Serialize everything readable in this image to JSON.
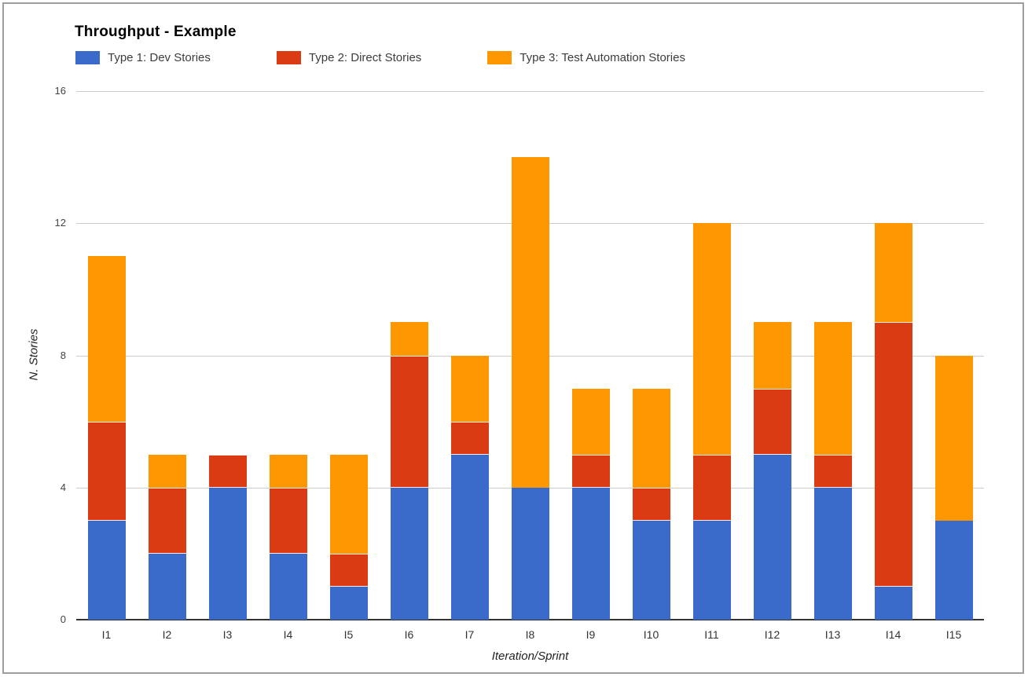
{
  "chart_data": {
    "type": "bar",
    "stacked": true,
    "title": "Throughput - Example",
    "xlabel": "Iteration/Sprint",
    "ylabel": "N. Stories",
    "categories": [
      "I1",
      "I2",
      "I3",
      "I4",
      "I5",
      "I6",
      "I7",
      "I8",
      "I9",
      "I10",
      "I11",
      "I12",
      "I13",
      "I14",
      "I15"
    ],
    "series": [
      {
        "name": "Type 1: Dev Stories",
        "color": "#3a6bcb",
        "values": [
          3,
          2,
          4,
          2,
          1,
          4,
          5,
          4,
          4,
          3,
          3,
          5,
          4,
          1,
          3
        ]
      },
      {
        "name": "Type 2: Direct Stories",
        "color": "#da3b12",
        "values": [
          3,
          2,
          1,
          2,
          1,
          4,
          1,
          0,
          1,
          1,
          2,
          2,
          1,
          8,
          0
        ]
      },
      {
        "name": "Type 3: Test Automation Stories",
        "color": "#ff9800",
        "values": [
          5,
          1,
          0,
          1,
          3,
          1,
          2,
          10,
          2,
          3,
          7,
          2,
          4,
          3,
          5
        ]
      }
    ],
    "totals": [
      11,
      5,
      5,
      5,
      5,
      9,
      8,
      14,
      7,
      7,
      12,
      9,
      9,
      12,
      8
    ],
    "ylim": [
      0,
      16
    ],
    "yticks": [
      0,
      4,
      8,
      12,
      16
    ],
    "grid": true,
    "legend_position": "top"
  }
}
